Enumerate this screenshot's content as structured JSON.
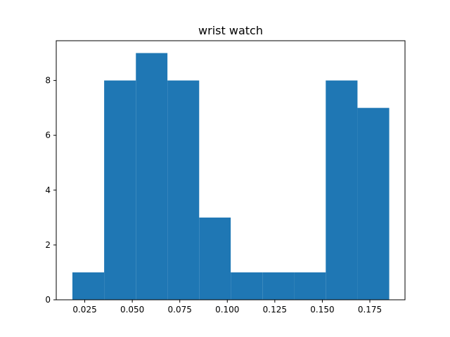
{
  "chart_data": {
    "type": "bar",
    "title": "wrist watch",
    "xlabel": "",
    "ylabel": "",
    "bin_edges": [
      0.0185,
      0.0352,
      0.0519,
      0.0685,
      0.0852,
      0.1018,
      0.1185,
      0.1352,
      0.1518,
      0.1685,
      0.1852
    ],
    "values": [
      1,
      8,
      9,
      8,
      3,
      1,
      1,
      1,
      8,
      7
    ],
    "xlim": [
      0.01,
      0.1935
    ],
    "ylim": [
      0,
      9.45
    ],
    "xticks": [
      0.025,
      0.05,
      0.075,
      0.1,
      0.125,
      0.15,
      0.175
    ],
    "xtick_labels": [
      "0.025",
      "0.050",
      "0.075",
      "0.100",
      "0.125",
      "0.150",
      "0.175"
    ],
    "yticks": [
      0,
      2,
      4,
      6,
      8
    ],
    "ytick_labels": [
      "0",
      "2",
      "4",
      "6",
      "8"
    ],
    "bar_color": "#1f77b4",
    "grid": false,
    "legend": false
  }
}
